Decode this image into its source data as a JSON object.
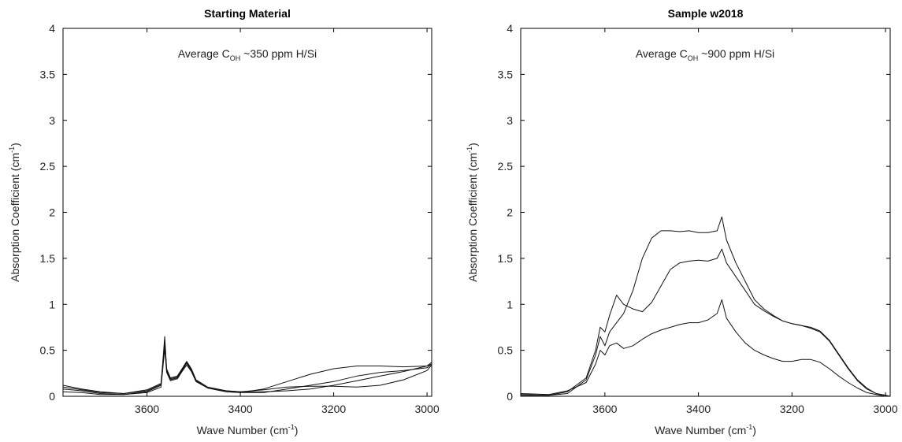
{
  "chart_data": [
    {
      "type": "line",
      "title": "Starting Material",
      "xlabel": "Wave Number (cm",
      "xlabel_sup": "-1",
      "xlabel_end": ")",
      "ylabel": "Absorption Coefficient (cm",
      "ylabel_sup": "-1",
      "ylabel_end": ")",
      "xlim": [
        3780,
        2990
      ],
      "ylim": [
        0,
        4
      ],
      "x_reversed": true,
      "x_ticks": [
        3600,
        3400,
        3200,
        3000
      ],
      "y_ticks": [
        0,
        0.5,
        1,
        1.5,
        2,
        2.5,
        3,
        3.5,
        4
      ],
      "y_tick_labels": [
        "0",
        "0.5",
        "1",
        "1.5",
        "2",
        "2.5",
        "3",
        "3.5",
        "4"
      ],
      "annotation": {
        "prefix": "Average C",
        "sub": "OH",
        "suffix": " ~350 ppm H/Si"
      },
      "series": [
        {
          "x": [
            3780,
            3740,
            3700,
            3650,
            3600,
            3570,
            3562,
            3558,
            3550,
            3535,
            3525,
            3515,
            3505,
            3495,
            3470,
            3430,
            3400,
            3350,
            3300,
            3250,
            3200,
            3150,
            3100,
            3050,
            3000,
            2990
          ],
          "y": [
            0.08,
            0.06,
            0.03,
            0.02,
            0.05,
            0.12,
            0.65,
            0.3,
            0.2,
            0.22,
            0.3,
            0.38,
            0.3,
            0.18,
            0.1,
            0.06,
            0.05,
            0.05,
            0.06,
            0.08,
            0.12,
            0.17,
            0.22,
            0.27,
            0.33,
            0.37
          ]
        },
        {
          "x": [
            3780,
            3740,
            3700,
            3650,
            3600,
            3570,
            3562,
            3558,
            3550,
            3535,
            3525,
            3515,
            3505,
            3495,
            3470,
            3430,
            3400,
            3350,
            3300,
            3250,
            3200,
            3150,
            3100,
            3050,
            3000,
            2990
          ],
          "y": [
            0.1,
            0.07,
            0.04,
            0.03,
            0.06,
            0.13,
            0.56,
            0.28,
            0.18,
            0.2,
            0.28,
            0.36,
            0.28,
            0.17,
            0.09,
            0.05,
            0.04,
            0.04,
            0.08,
            0.12,
            0.16,
            0.22,
            0.26,
            0.28,
            0.31,
            0.35
          ]
        },
        {
          "x": [
            3780,
            3740,
            3700,
            3650,
            3600,
            3570,
            3562,
            3558,
            3550,
            3535,
            3525,
            3515,
            3505,
            3495,
            3470,
            3430,
            3400,
            3350,
            3300,
            3250,
            3200,
            3150,
            3100,
            3050,
            3000,
            2990
          ],
          "y": [
            0.05,
            0.04,
            0.02,
            0.02,
            0.04,
            0.1,
            0.52,
            0.26,
            0.17,
            0.19,
            0.27,
            0.34,
            0.27,
            0.16,
            0.09,
            0.05,
            0.04,
            0.08,
            0.16,
            0.24,
            0.3,
            0.33,
            0.33,
            0.32,
            0.33,
            0.35
          ]
        },
        {
          "x": [
            3780,
            3740,
            3700,
            3650,
            3600,
            3570,
            3562,
            3558,
            3550,
            3535,
            3525,
            3515,
            3505,
            3495,
            3470,
            3430,
            3400,
            3350,
            3300,
            3250,
            3200,
            3150,
            3100,
            3050,
            3000,
            2990
          ],
          "y": [
            0.12,
            0.08,
            0.05,
            0.03,
            0.07,
            0.14,
            0.6,
            0.29,
            0.19,
            0.21,
            0.29,
            0.37,
            0.29,
            0.17,
            0.09,
            0.06,
            0.05,
            0.07,
            0.1,
            0.11,
            0.11,
            0.1,
            0.12,
            0.18,
            0.28,
            0.34
          ]
        }
      ]
    },
    {
      "type": "line",
      "title": "Sample w2018",
      "xlabel": "Wave Number (cm",
      "xlabel_sup": "-1",
      "xlabel_end": ")",
      "ylabel": "Absorption Coefficient (cm",
      "ylabel_sup": "-1",
      "ylabel_end": ")",
      "xlim": [
        3780,
        2990
      ],
      "ylim": [
        0,
        4
      ],
      "x_reversed": true,
      "x_ticks": [
        3600,
        3400,
        3200,
        3000
      ],
      "y_ticks": [
        0,
        0.5,
        1,
        1.5,
        2,
        2.5,
        3,
        3.5,
        4
      ],
      "y_tick_labels": [
        "0",
        "0.5",
        "1",
        "1.5",
        "2",
        "2.5",
        "3",
        "3.5",
        "4"
      ],
      "annotation": {
        "prefix": "Average C",
        "sub": "OH",
        "suffix": " ~900 ppm H/Si"
      },
      "series": [
        {
          "x": [
            3780,
            3720,
            3680,
            3640,
            3620,
            3610,
            3600,
            3590,
            3575,
            3560,
            3540,
            3520,
            3500,
            3480,
            3460,
            3440,
            3420,
            3400,
            3380,
            3360,
            3350,
            3340,
            3320,
            3300,
            3280,
            3260,
            3240,
            3220,
            3200,
            3180,
            3160,
            3140,
            3120,
            3100,
            3080,
            3060,
            3040,
            3020,
            3000,
            2990
          ],
          "y": [
            0.02,
            0.01,
            0.05,
            0.2,
            0.5,
            0.75,
            0.7,
            0.88,
            1.1,
            1.0,
            0.95,
            0.92,
            1.02,
            1.2,
            1.38,
            1.45,
            1.47,
            1.48,
            1.47,
            1.5,
            1.6,
            1.45,
            1.3,
            1.15,
            1.0,
            0.93,
            0.87,
            0.82,
            0.79,
            0.77,
            0.74,
            0.7,
            0.6,
            0.45,
            0.3,
            0.17,
            0.08,
            0.03,
            0.01,
            0.0
          ]
        },
        {
          "x": [
            3780,
            3720,
            3680,
            3640,
            3620,
            3610,
            3600,
            3590,
            3575,
            3560,
            3540,
            3520,
            3500,
            3480,
            3460,
            3440,
            3420,
            3400,
            3380,
            3360,
            3350,
            3340,
            3320,
            3300,
            3280,
            3260,
            3240,
            3220,
            3200,
            3180,
            3160,
            3140,
            3120,
            3100,
            3080,
            3060,
            3040,
            3020,
            3000,
            2990
          ],
          "y": [
            0.01,
            0.01,
            0.03,
            0.18,
            0.45,
            0.65,
            0.55,
            0.7,
            0.8,
            0.9,
            1.15,
            1.5,
            1.72,
            1.8,
            1.8,
            1.79,
            1.8,
            1.78,
            1.78,
            1.8,
            1.95,
            1.7,
            1.45,
            1.25,
            1.05,
            0.95,
            0.88,
            0.82,
            0.79,
            0.77,
            0.75,
            0.71,
            0.61,
            0.46,
            0.31,
            0.18,
            0.09,
            0.03,
            0.01,
            0.0
          ]
        },
        {
          "x": [
            3780,
            3720,
            3680,
            3640,
            3620,
            3610,
            3600,
            3590,
            3575,
            3560,
            3540,
            3520,
            3500,
            3480,
            3460,
            3440,
            3420,
            3400,
            3380,
            3360,
            3350,
            3340,
            3320,
            3300,
            3280,
            3260,
            3240,
            3220,
            3200,
            3180,
            3160,
            3140,
            3120,
            3100,
            3080,
            3060,
            3040,
            3020,
            3000,
            2990
          ],
          "y": [
            0.03,
            0.02,
            0.06,
            0.15,
            0.35,
            0.5,
            0.45,
            0.55,
            0.58,
            0.52,
            0.55,
            0.62,
            0.68,
            0.72,
            0.75,
            0.78,
            0.8,
            0.8,
            0.83,
            0.9,
            1.05,
            0.85,
            0.7,
            0.58,
            0.5,
            0.45,
            0.41,
            0.38,
            0.38,
            0.4,
            0.4,
            0.37,
            0.3,
            0.22,
            0.15,
            0.09,
            0.04,
            0.02,
            0.0,
            0.0
          ]
        }
      ]
    }
  ]
}
